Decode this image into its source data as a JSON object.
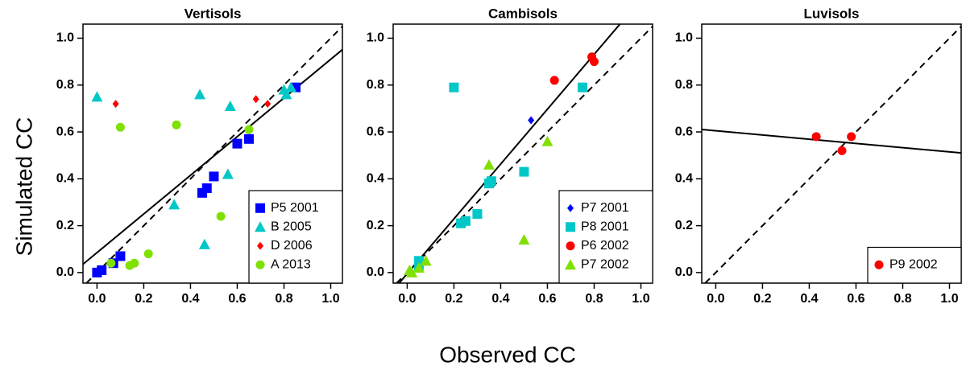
{
  "xlabel": "Observed CC",
  "ylabel": "Simulated CC",
  "chart_data": [
    {
      "type": "scatter",
      "title": "Vertisols",
      "xlim": [
        -0.06,
        1.05
      ],
      "ylim": [
        -0.045,
        1.06
      ],
      "xticks": [
        {
          "value": 0,
          "label": "0.0"
        },
        0.2,
        0.4,
        0.6,
        0.8,
        {
          "value": 1,
          "label": "1.0"
        }
      ],
      "yticks": [
        {
          "value": 0,
          "label": "0.0"
        },
        0.2,
        0.4,
        0.6,
        0.8,
        {
          "value": 1,
          "label": "1.0"
        }
      ],
      "legend": "bottom-right",
      "one_to_one_line": true,
      "fit_line": {
        "intercept": 0.085,
        "slope": 0.825
      },
      "series": [
        {
          "name": "P5 2001",
          "color": "#0000ff",
          "marker": "square",
          "x": [
            0.0,
            0.02,
            0.07,
            0.1,
            0.45,
            0.47,
            0.5,
            0.6,
            0.65,
            0.85
          ],
          "values": [
            0.0,
            0.01,
            0.04,
            0.07,
            0.34,
            0.36,
            0.41,
            0.55,
            0.57,
            0.79
          ]
        },
        {
          "name": "B 2005",
          "color": "#00c8c8",
          "marker": "triangle",
          "x": [
            0.0,
            0.44,
            0.57,
            0.33,
            0.56,
            0.46,
            0.8,
            0.81,
            0.83
          ],
          "values": [
            0.75,
            0.76,
            0.71,
            0.29,
            0.42,
            0.12,
            0.78,
            0.76,
            0.79
          ]
        },
        {
          "name": "D 2006",
          "color": "#ff0000",
          "marker": "diamond",
          "x": [
            0.08,
            0.68,
            0.73
          ],
          "values": [
            0.72,
            0.74,
            0.72
          ]
        },
        {
          "name": "A 2013",
          "color": "#80e000",
          "marker": "circle",
          "x": [
            0.1,
            0.34,
            0.65,
            0.53,
            0.22,
            0.16,
            0.14,
            0.06
          ],
          "values": [
            0.62,
            0.63,
            0.61,
            0.24,
            0.08,
            0.04,
            0.03,
            0.04
          ]
        }
      ]
    },
    {
      "type": "scatter",
      "title": "Cambisols",
      "xlim": [
        -0.06,
        1.05
      ],
      "ylim": [
        -0.045,
        1.06
      ],
      "xticks": [
        {
          "value": 0,
          "label": "0.0"
        },
        0.2,
        0.4,
        0.6,
        0.8,
        {
          "value": 1,
          "label": "1.0"
        }
      ],
      "yticks": [
        {
          "value": 0,
          "label": "0.0"
        },
        0.2,
        0.4,
        0.6,
        0.8,
        {
          "value": 1,
          "label": "1.0"
        }
      ],
      "legend": "bottom-right",
      "one_to_one_line": true,
      "fit_line": {
        "intercept": -0.005,
        "slope": 1.17
      },
      "series": [
        {
          "name": "P7 2001",
          "color": "#0000ff",
          "marker": "diamond",
          "x": [
            0.53
          ],
          "values": [
            0.65
          ]
        },
        {
          "name": "P8 2001",
          "color": "#00c8c8",
          "marker": "square",
          "x": [
            0.2,
            0.75,
            0.5,
            0.35,
            0.36,
            0.3,
            0.25,
            0.23,
            0.05,
            0.05
          ],
          "values": [
            0.79,
            0.79,
            0.43,
            0.38,
            0.39,
            0.25,
            0.22,
            0.21,
            0.03,
            0.05
          ]
        },
        {
          "name": "P6 2002",
          "color": "#ff0000",
          "marker": "circle",
          "x": [
            0.63,
            0.79,
            0.8
          ],
          "values": [
            0.82,
            0.92,
            0.9
          ]
        },
        {
          "name": "P7 2002",
          "color": "#80e000",
          "marker": "triangle",
          "x": [
            0.35,
            0.6,
            0.5,
            0.08,
            0.05,
            0.02,
            0.01
          ],
          "values": [
            0.46,
            0.56,
            0.14,
            0.05,
            0.02,
            0.0,
            0.01
          ]
        }
      ]
    },
    {
      "type": "scatter",
      "title": "Luvisols",
      "xlim": [
        -0.06,
        1.05
      ],
      "ylim": [
        -0.045,
        1.06
      ],
      "xticks": [
        {
          "value": 0,
          "label": "0.0"
        },
        0.2,
        0.4,
        0.6,
        0.8,
        {
          "value": 1,
          "label": "1.0"
        }
      ],
      "yticks": [
        {
          "value": 0,
          "label": "0.0"
        },
        0.2,
        0.4,
        0.6,
        0.8,
        {
          "value": 1,
          "label": "1.0"
        }
      ],
      "legend": "bottom-right",
      "one_to_one_line": true,
      "fit_line": {
        "intercept": 0.605,
        "slope": -0.09
      },
      "series": [
        {
          "name": "P9 2002",
          "color": "#ff0000",
          "marker": "circle",
          "x": [
            0.43,
            0.54,
            0.58
          ],
          "values": [
            0.58,
            0.52,
            0.58
          ]
        }
      ]
    }
  ]
}
